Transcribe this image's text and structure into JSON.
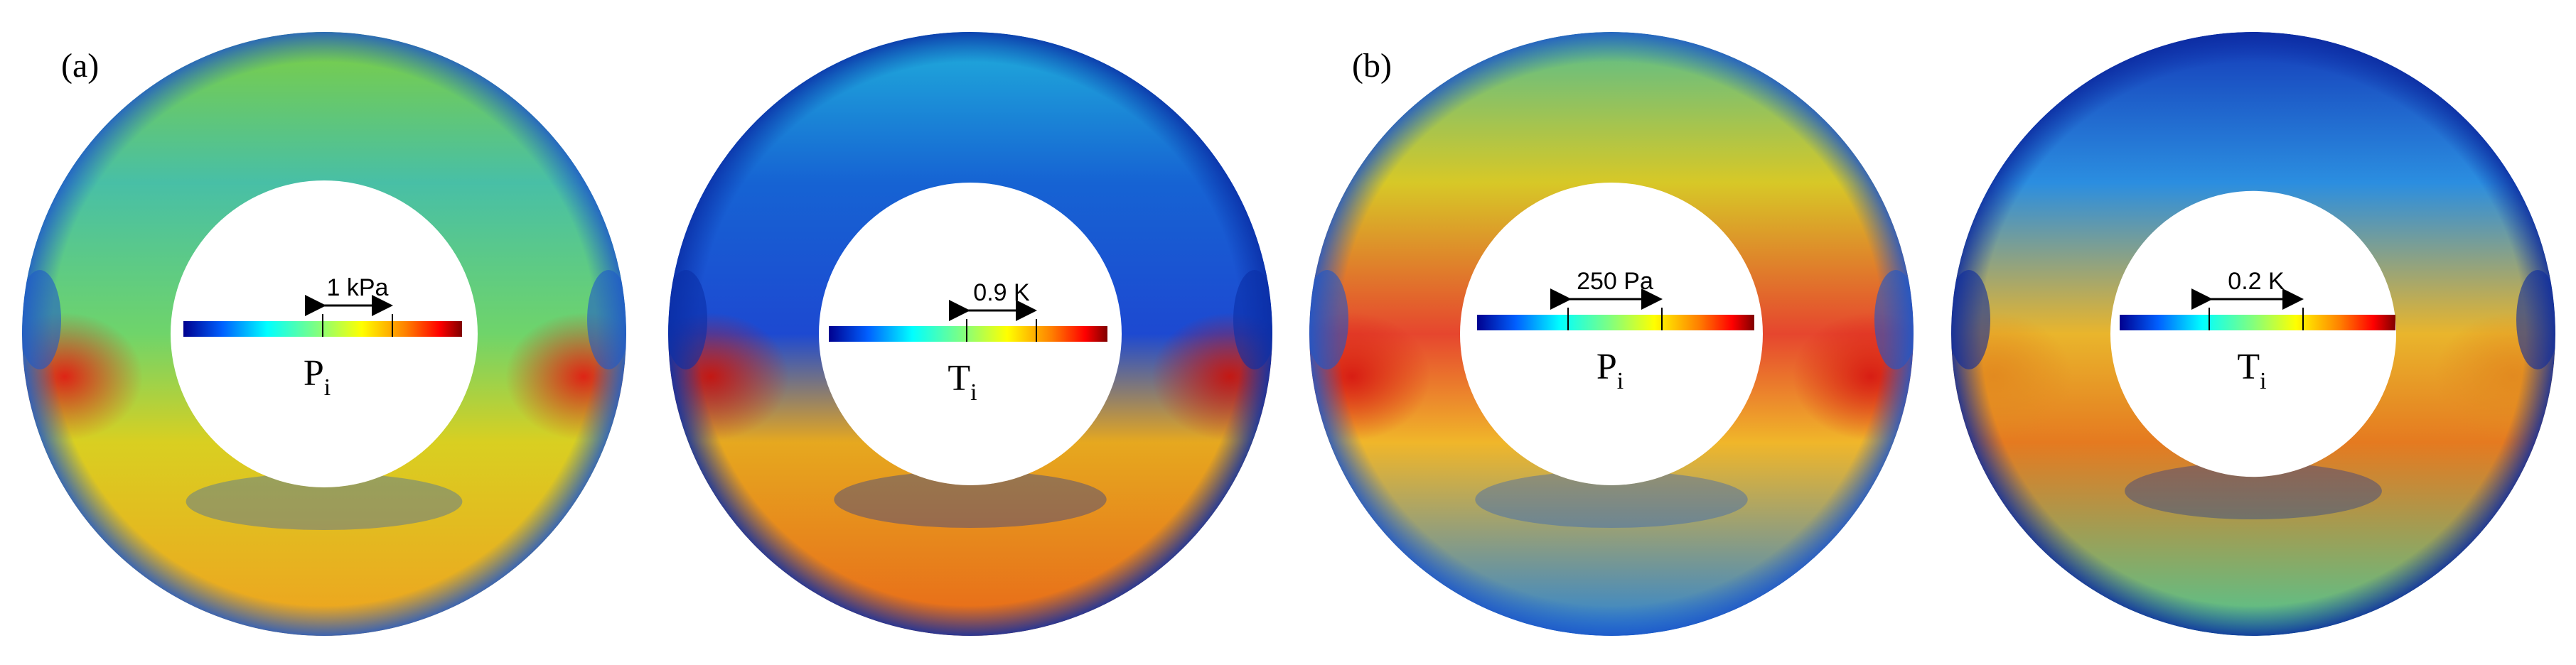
{
  "panels": [
    {
      "label": "(a)",
      "plots": [
        {
          "scale_text": "1 kPa",
          "symbol": "P",
          "subscript": "i",
          "colors": {
            "top": "#7ecf3f",
            "upper": "#48bfa6",
            "mid": "#6fd46a",
            "lower": "#d9cf21",
            "bottom": "#efa11f",
            "hot": "#e21b12",
            "cold": "#1e59c9",
            "hole": "#ffffff"
          }
        },
        {
          "scale_text": "0.9 K",
          "symbol": "T",
          "subscript": "i",
          "colors": {
            "top": "#20b0db",
            "upper": "#1663d3",
            "mid": "#1d49d1",
            "lower": "#e6a81f",
            "bottom": "#e86719",
            "hot": "#c8130d",
            "cold": "#0a2ea6",
            "hole": "#ffffff"
          }
        }
      ]
    },
    {
      "label": "(b)",
      "plots": [
        {
          "scale_text": "250 Pa",
          "symbol": "P",
          "subscript": "i",
          "colors": {
            "top": "#55bd8f",
            "upper": "#d7c827",
            "mid": "#e6462e",
            "lower": "#f0b62a",
            "bottom": "#2a84d6",
            "hot": "#d71912",
            "cold": "#1d56c9",
            "hole": "#ffffff"
          }
        },
        {
          "scale_text": "0.2 K",
          "symbol": "T",
          "subscript": "i",
          "colors": {
            "top": "#143ab8",
            "upper": "#2b8ee0",
            "mid": "#e9b52c",
            "lower": "#e57a20",
            "bottom": "#4ec893",
            "hot": "#e2891f",
            "cold": "#0b2a9f",
            "hole": "#ffffff"
          }
        }
      ]
    }
  ],
  "colorbar": {
    "stops": [
      "#00008f",
      "#0060ff",
      "#00ffff",
      "#80ff80",
      "#ffff00",
      "#ff7f00",
      "#ff0000",
      "#800000"
    ]
  }
}
